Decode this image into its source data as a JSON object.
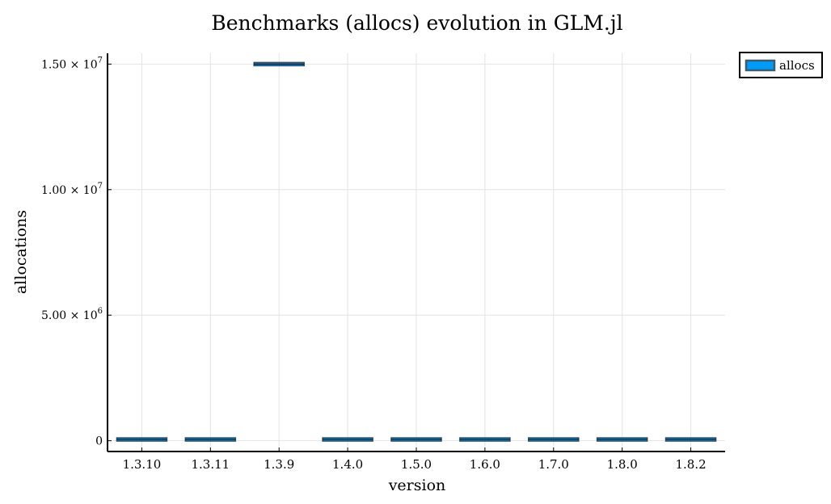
{
  "chart_data": {
    "type": "box",
    "title": "Benchmarks (allocs) evolution in GLM.jl",
    "xlabel": "version",
    "ylabel": "allocations",
    "categories": [
      "1.3.10",
      "1.3.11",
      "1.3.9",
      "1.4.0",
      "1.5.0",
      "1.6.0",
      "1.7.0",
      "1.8.0",
      "1.8.2"
    ],
    "series": [
      {
        "name": "allocs",
        "color": "#009af9",
        "values": [
          50000,
          50000,
          15000000,
          50000,
          50000,
          50000,
          50000,
          50000,
          50000
        ]
      }
    ],
    "ylim": [
      -430000,
      15430000
    ],
    "yticks": [
      {
        "value": 0,
        "mantissa": "0",
        "exp": ""
      },
      {
        "value": 5000000,
        "mantissa": "5.00 × 10",
        "exp": "6"
      },
      {
        "value": 10000000,
        "mantissa": "1.00 × 10",
        "exp": "7"
      },
      {
        "value": 15000000,
        "mantissa": "1.50 × 10",
        "exp": "7"
      }
    ],
    "grid": true,
    "legend_position": "top-right"
  }
}
